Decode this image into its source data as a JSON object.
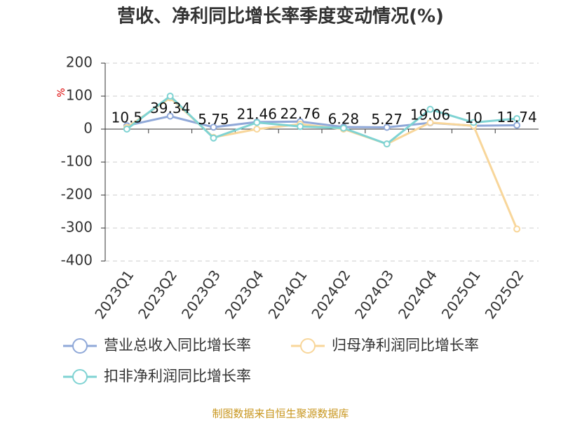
{
  "chart_data": {
    "type": "line",
    "title": "营收、净利同比增长率季度变动情况(%)",
    "y_label": "%",
    "categories": [
      "2023Q1",
      "2023Q2",
      "2023Q3",
      "2023Q4",
      "2024Q1",
      "2024Q2",
      "2024Q3",
      "2024Q4",
      "2025Q1",
      "2025Q2"
    ],
    "series": [
      {
        "name": "营业总收入同比增长率",
        "color": "#8fa8d8",
        "values": [
          10.5,
          39.34,
          5.75,
          21.46,
          22.76,
          6.28,
          5.27,
          19.06,
          10,
          11.74
        ],
        "show_labels": true
      },
      {
        "name": "归母净利润同比增长率",
        "color": "#f8d69a",
        "values": [
          5,
          95,
          -25,
          0,
          15,
          0,
          -45,
          20,
          10,
          -303
        ],
        "show_labels": false
      },
      {
        "name": "扣非净利润同比增长率",
        "color": "#7fd3d3",
        "values": [
          0,
          100,
          -27,
          20,
          8,
          3,
          -45,
          60,
          20,
          32
        ],
        "show_labels": false
      }
    ],
    "ylim": [
      -400,
      200
    ],
    "yticks": [
      -400,
      -300,
      -200,
      -100,
      0,
      100,
      200
    ],
    "grid": true,
    "source": "制图数据来自恒生聚源数据库"
  }
}
